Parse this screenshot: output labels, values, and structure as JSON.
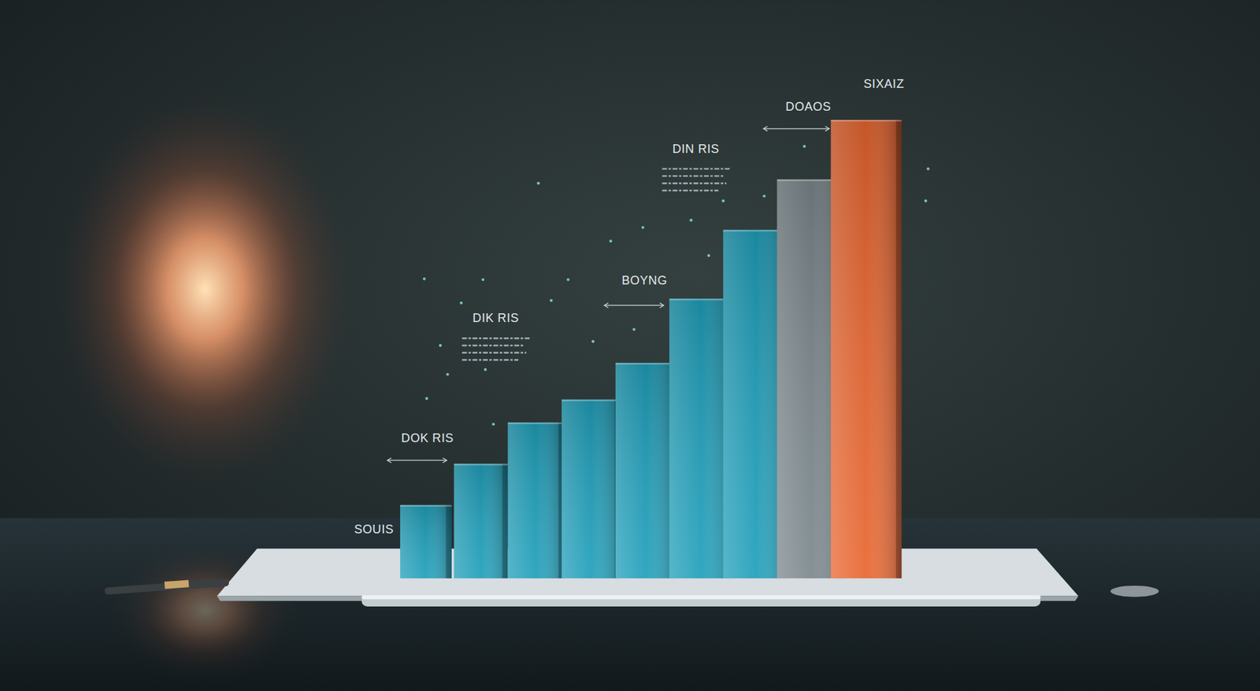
{
  "chart_data": {
    "type": "bar",
    "categories": [
      null,
      null,
      null,
      null,
      null,
      null,
      null,
      null,
      null
    ],
    "values": [
      16,
      25,
      34,
      39,
      47,
      61,
      76,
      87,
      100
    ],
    "colors": [
      "#1f9fba",
      "#1f9fba",
      "#1f9fba",
      "#1f9fba",
      "#1f9fba",
      "#1f9fba",
      "#1f9fba",
      "#7b878c",
      "#e8652f"
    ],
    "ylim": [
      0,
      100
    ],
    "tick_labels": false,
    "grid": false,
    "annotations": [
      "SOUIS",
      "DOK RIS",
      "DIK RIS",
      "BOYNG",
      "DIN RIS",
      "DOAOS",
      "SIXAIZ"
    ]
  }
}
